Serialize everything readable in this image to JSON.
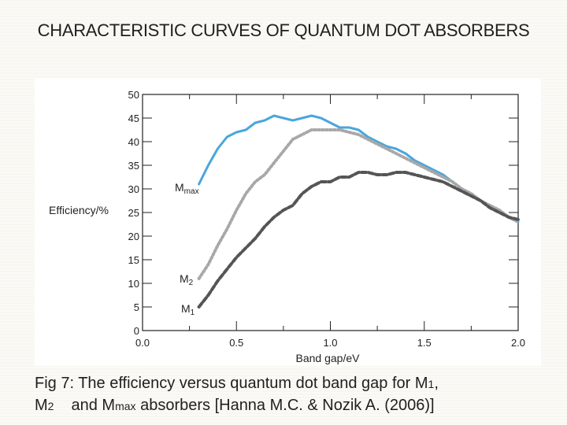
{
  "slide": {
    "title": "CHARACTERISTIC CURVES OF QUANTUM DOT ABSORBERS"
  },
  "caption": {
    "part1": "Fig 7: The efficiency versus quantum dot band gap for M",
    "sub1": "1",
    "part2": ",",
    "m2": "M",
    "sub2": "2",
    "part3": "and M",
    "sub3": "max",
    "part4": " absorbers [Hanna M.C. & Nozik A. (2006)]"
  },
  "colors": {
    "mmax": "#4aa6dc",
    "m2": "#a8a8a8",
    "m1": "#555555",
    "axis": "#222222"
  },
  "chart_data": {
    "type": "line",
    "xlabel": "Band gap/eV",
    "ylabel": "Efficiency/%",
    "xlim": [
      0.0,
      2.0
    ],
    "ylim": [
      0,
      50
    ],
    "x_ticks": [
      "0.0",
      "0.5",
      "1.0",
      "1.5",
      "2.0"
    ],
    "y_ticks": [
      "0",
      "5",
      "10",
      "15",
      "20",
      "25",
      "30",
      "35",
      "40",
      "45",
      "50"
    ],
    "series": [
      {
        "name": "M",
        "sub": "max",
        "x": [
          0.3,
          0.35,
          0.4,
          0.45,
          0.5,
          0.55,
          0.6,
          0.65,
          0.7,
          0.75,
          0.8,
          0.85,
          0.9,
          0.95,
          1.0,
          1.05,
          1.1,
          1.15,
          1.2,
          1.25,
          1.3,
          1.35,
          1.4,
          1.45,
          1.5,
          1.55,
          1.6,
          1.65,
          1.7,
          1.75,
          1.8,
          1.85,
          1.9,
          1.95,
          2.0
        ],
        "y": [
          31,
          35,
          38.5,
          41,
          42,
          42.5,
          44,
          44.5,
          45.5,
          45,
          44.5,
          45,
          45.5,
          45,
          44,
          43,
          43,
          42.5,
          41,
          40,
          39,
          38.5,
          37.5,
          36,
          35,
          34,
          33,
          31.5,
          30,
          29,
          27.5,
          26.5,
          25.5,
          24,
          23
        ]
      },
      {
        "name": "M",
        "sub": "2",
        "x": [
          0.3,
          0.35,
          0.4,
          0.45,
          0.5,
          0.55,
          0.6,
          0.65,
          0.7,
          0.75,
          0.8,
          0.85,
          0.9,
          0.95,
          1.0,
          1.05,
          1.1,
          1.15,
          1.2,
          1.25,
          1.3,
          1.35,
          1.4,
          1.45,
          1.5,
          1.55,
          1.6,
          1.65,
          1.7,
          1.75,
          1.8,
          1.85,
          1.9,
          1.95,
          2.0
        ],
        "y": [
          11,
          14,
          18,
          21.5,
          25.5,
          29,
          31.5,
          33,
          35.5,
          38,
          40.5,
          41.5,
          42.5,
          42.5,
          42.5,
          42.5,
          42,
          41.5,
          40.5,
          39.5,
          38.5,
          37.5,
          36.5,
          35.5,
          34.5,
          33.5,
          32.5,
          31.5,
          30,
          29,
          27.5,
          26.5,
          25.5,
          24,
          23
        ]
      },
      {
        "name": "M",
        "sub": "1",
        "x": [
          0.3,
          0.35,
          0.4,
          0.45,
          0.5,
          0.55,
          0.6,
          0.65,
          0.7,
          0.75,
          0.8,
          0.85,
          0.9,
          0.95,
          1.0,
          1.05,
          1.1,
          1.15,
          1.2,
          1.25,
          1.3,
          1.35,
          1.4,
          1.45,
          1.5,
          1.55,
          1.6,
          1.65,
          1.7,
          1.75,
          1.8,
          1.85,
          1.9,
          1.95,
          2.0
        ],
        "y": [
          5,
          7.5,
          10.5,
          13,
          15.5,
          17.5,
          19.5,
          22,
          24,
          25.5,
          26.5,
          29,
          30.5,
          31.5,
          31.5,
          32.5,
          32.5,
          33.5,
          33.5,
          33,
          33,
          33.5,
          33.5,
          33,
          32.5,
          32,
          31.5,
          30.5,
          29.5,
          28.5,
          27.5,
          26,
          25,
          24,
          23.5
        ]
      }
    ]
  }
}
